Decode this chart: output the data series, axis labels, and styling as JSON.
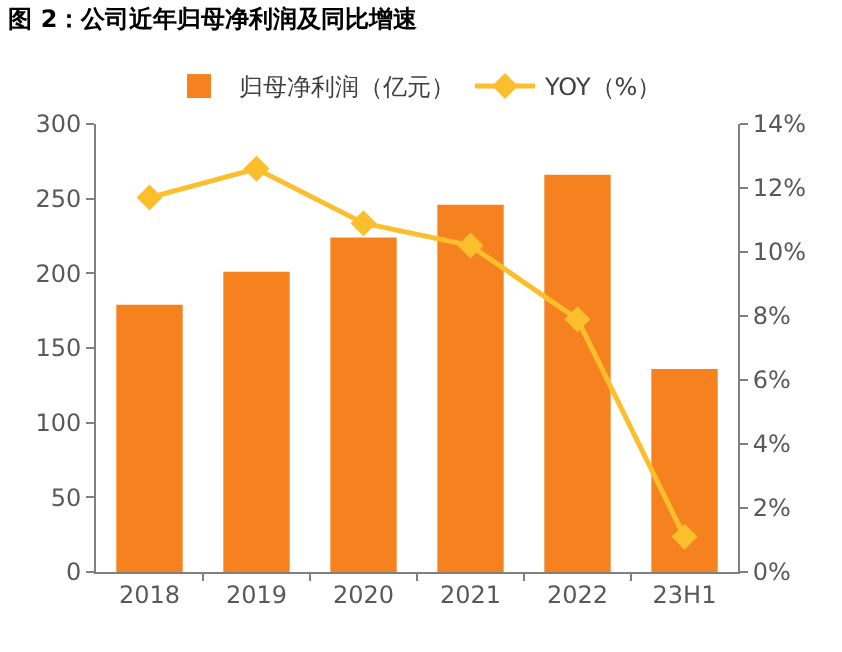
{
  "chart_data": {
    "type": "bar",
    "title": "图 2：公司近年归母净利润及同比增速",
    "categories": [
      "2018",
      "2019",
      "2020",
      "2021",
      "2022",
      "23H1"
    ],
    "series": [
      {
        "name": "归母净利润（亿元）",
        "color": "#f5821f",
        "values": [
          179,
          201,
          224,
          246,
          266,
          136
        ]
      },
      {
        "name": "YOY（%）",
        "type": "line",
        "axis": "y2",
        "color": "#fbbf2d",
        "marker": "diamond",
        "values": [
          11.7,
          12.6,
          10.9,
          10.2,
          7.9,
          1.1
        ]
      }
    ],
    "ylim": [
      0,
      300
    ],
    "yticks": [
      0,
      50,
      100,
      150,
      200,
      250,
      300
    ],
    "y2lim": [
      0,
      14
    ],
    "y2ticks": [
      {
        "value": 0,
        "label": "0%"
      },
      {
        "value": 2,
        "label": "2%"
      },
      {
        "value": 4,
        "label": "4%"
      },
      {
        "value": 6,
        "label": "6%"
      },
      {
        "value": 8,
        "label": "8%"
      },
      {
        "value": 10,
        "label": "10%"
      },
      {
        "value": 12,
        "label": "12%"
      },
      {
        "value": 14,
        "label": "14%"
      }
    ],
    "grid": false,
    "legend": "top"
  }
}
